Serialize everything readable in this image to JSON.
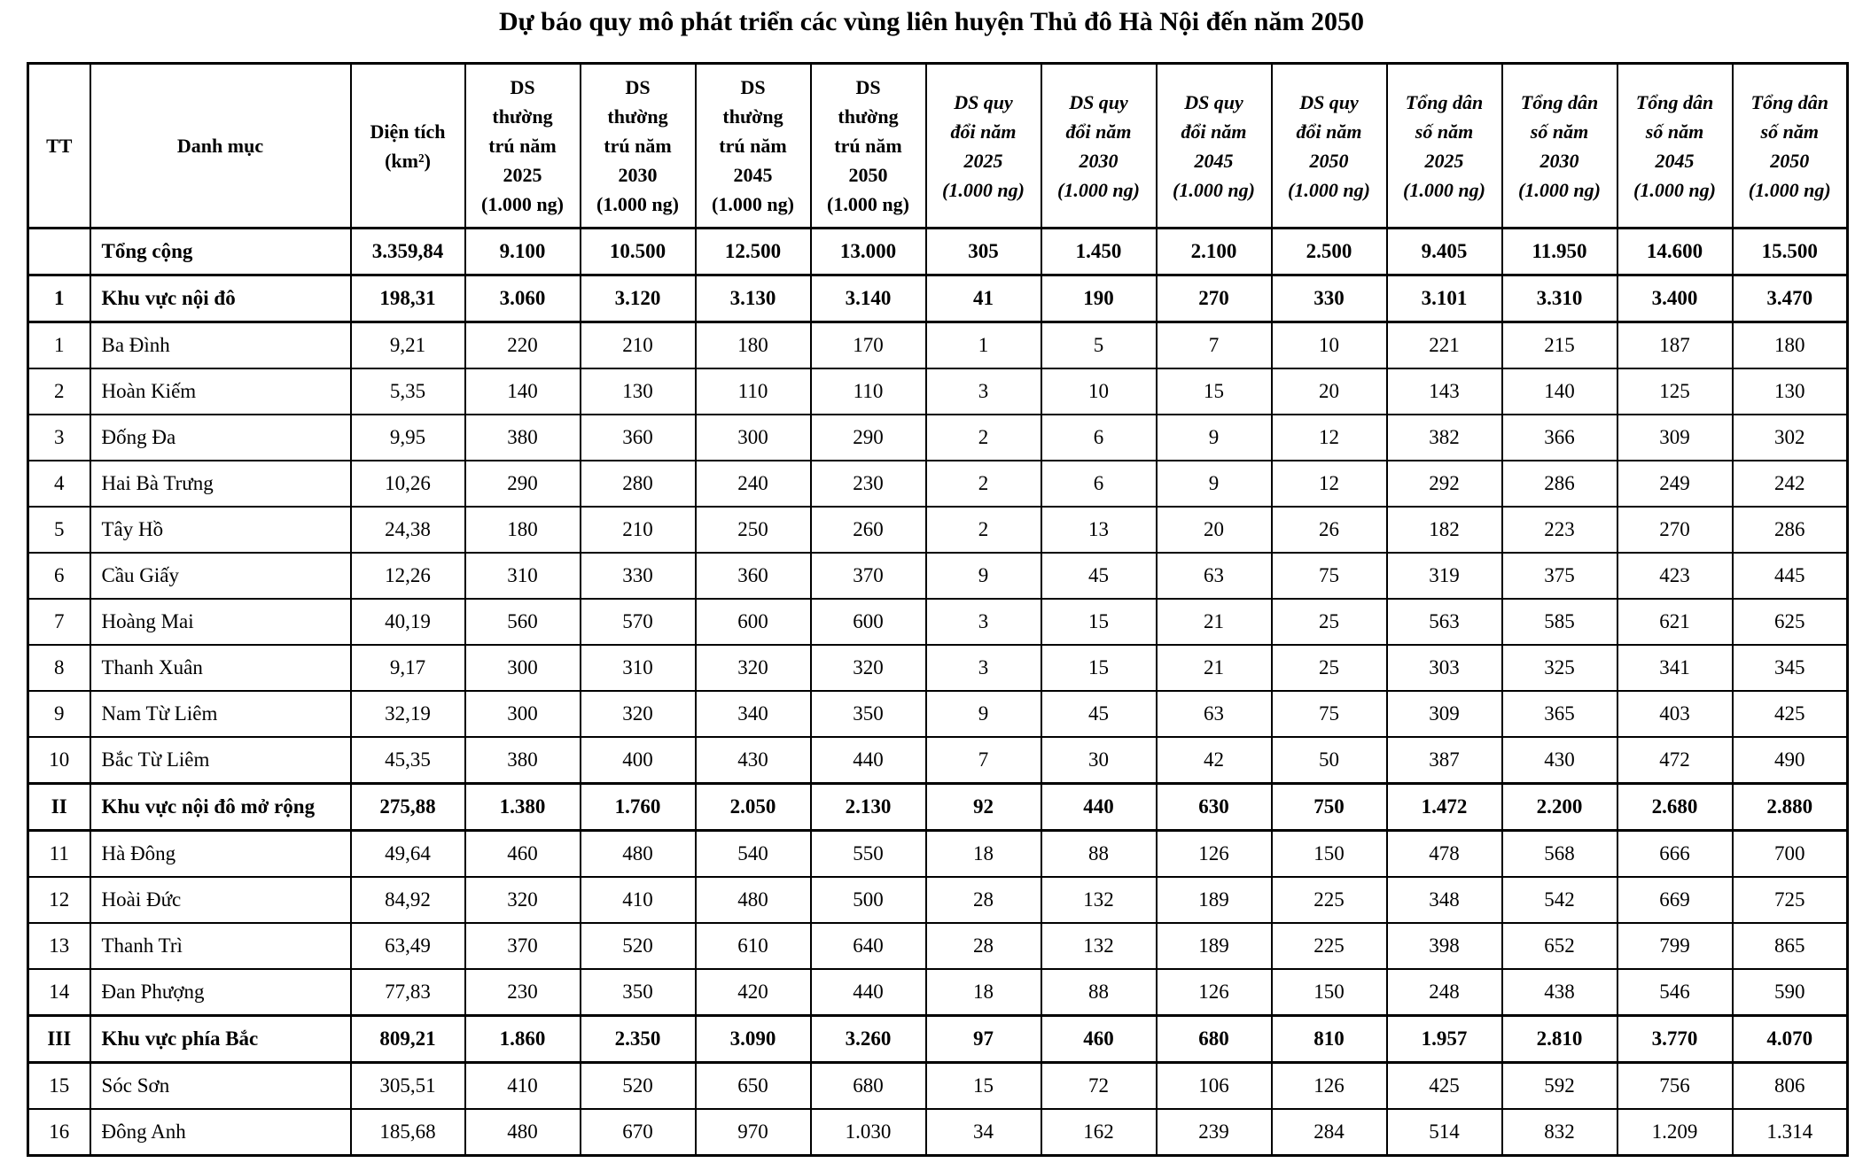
{
  "title": "Dự báo quy mô phát triển các vùng liên huyện Thủ đô Hà Nội đến năm 2050",
  "table": {
    "header": [
      {
        "label": "TT",
        "italic": false
      },
      {
        "label": "Danh mục",
        "italic": false
      },
      {
        "label": "Diện tích\n(km²)",
        "italic": false
      },
      {
        "label": "DS\nthường\ntrú năm\n2025\n(1.000 ng)",
        "italic": false
      },
      {
        "label": "DS\nthường\ntrú năm\n2030\n(1.000 ng)",
        "italic": false
      },
      {
        "label": "DS\nthường\ntrú năm\n2045\n(1.000 ng)",
        "italic": false
      },
      {
        "label": "DS\nthường\ntrú năm\n2050\n(1.000 ng)",
        "italic": false
      },
      {
        "label": "DS quy\nđổi năm\n2025\n(1.000 ng)",
        "italic": true
      },
      {
        "label": "DS quy\nđổi năm\n2030\n(1.000 ng)",
        "italic": true
      },
      {
        "label": "DS quy\nđổi năm\n2045\n(1.000 ng)",
        "italic": true
      },
      {
        "label": "DS quy\nđổi năm\n2050\n(1.000 ng)",
        "italic": true
      },
      {
        "label": "Tổng dân\nsố năm\n2025\n(1.000 ng)",
        "italic": true
      },
      {
        "label": "Tổng dân\nsố năm\n2030\n(1.000 ng)",
        "italic": true
      },
      {
        "label": "Tổng dân\nsố năm\n2045\n(1.000 ng)",
        "italic": true
      },
      {
        "label": "Tổng dân\nsố năm\n2050\n(1.000 ng)",
        "italic": true
      }
    ],
    "rows": [
      {
        "tt": "",
        "name": "Tổng cộng",
        "bold": true,
        "values": [
          "3.359,84",
          "9.100",
          "10.500",
          "12.500",
          "13.000",
          "305",
          "1.450",
          "2.100",
          "2.500",
          "9.405",
          "11.950",
          "14.600",
          "15.500"
        ]
      },
      {
        "tt": "1",
        "name": "Khu vực nội đô",
        "bold": true,
        "values": [
          "198,31",
          "3.060",
          "3.120",
          "3.130",
          "3.140",
          "41",
          "190",
          "270",
          "330",
          "3.101",
          "3.310",
          "3.400",
          "3.470"
        ]
      },
      {
        "tt": "1",
        "name": "Ba Đình",
        "bold": false,
        "values": [
          "9,21",
          "220",
          "210",
          "180",
          "170",
          "1",
          "5",
          "7",
          "10",
          "221",
          "215",
          "187",
          "180"
        ]
      },
      {
        "tt": "2",
        "name": "Hoàn Kiếm",
        "bold": false,
        "values": [
          "5,35",
          "140",
          "130",
          "110",
          "110",
          "3",
          "10",
          "15",
          "20",
          "143",
          "140",
          "125",
          "130"
        ]
      },
      {
        "tt": "3",
        "name": "Đống Đa",
        "bold": false,
        "values": [
          "9,95",
          "380",
          "360",
          "300",
          "290",
          "2",
          "6",
          "9",
          "12",
          "382",
          "366",
          "309",
          "302"
        ]
      },
      {
        "tt": "4",
        "name": "Hai Bà Trưng",
        "bold": false,
        "values": [
          "10,26",
          "290",
          "280",
          "240",
          "230",
          "2",
          "6",
          "9",
          "12",
          "292",
          "286",
          "249",
          "242"
        ]
      },
      {
        "tt": "5",
        "name": "Tây Hồ",
        "bold": false,
        "values": [
          "24,38",
          "180",
          "210",
          "250",
          "260",
          "2",
          "13",
          "20",
          "26",
          "182",
          "223",
          "270",
          "286"
        ]
      },
      {
        "tt": "6",
        "name": "Cầu Giấy",
        "bold": false,
        "values": [
          "12,26",
          "310",
          "330",
          "360",
          "370",
          "9",
          "45",
          "63",
          "75",
          "319",
          "375",
          "423",
          "445"
        ]
      },
      {
        "tt": "7",
        "name": "Hoàng Mai",
        "bold": false,
        "values": [
          "40,19",
          "560",
          "570",
          "600",
          "600",
          "3",
          "15",
          "21",
          "25",
          "563",
          "585",
          "621",
          "625"
        ]
      },
      {
        "tt": "8",
        "name": "Thanh Xuân",
        "bold": false,
        "values": [
          "9,17",
          "300",
          "310",
          "320",
          "320",
          "3",
          "15",
          "21",
          "25",
          "303",
          "325",
          "341",
          "345"
        ]
      },
      {
        "tt": "9",
        "name": "Nam Từ Liêm",
        "bold": false,
        "values": [
          "32,19",
          "300",
          "320",
          "340",
          "350",
          "9",
          "45",
          "63",
          "75",
          "309",
          "365",
          "403",
          "425"
        ]
      },
      {
        "tt": "10",
        "name": "Bắc Từ Liêm",
        "bold": false,
        "values": [
          "45,35",
          "380",
          "400",
          "430",
          "440",
          "7",
          "30",
          "42",
          "50",
          "387",
          "430",
          "472",
          "490"
        ]
      },
      {
        "tt": "II",
        "name": "Khu vực nội đô mở rộng",
        "bold": true,
        "values": [
          "275,88",
          "1.380",
          "1.760",
          "2.050",
          "2.130",
          "92",
          "440",
          "630",
          "750",
          "1.472",
          "2.200",
          "2.680",
          "2.880"
        ]
      },
      {
        "tt": "11",
        "name": "Hà Đông",
        "bold": false,
        "values": [
          "49,64",
          "460",
          "480",
          "540",
          "550",
          "18",
          "88",
          "126",
          "150",
          "478",
          "568",
          "666",
          "700"
        ]
      },
      {
        "tt": "12",
        "name": "Hoài Đức",
        "bold": false,
        "values": [
          "84,92",
          "320",
          "410",
          "480",
          "500",
          "28",
          "132",
          "189",
          "225",
          "348",
          "542",
          "669",
          "725"
        ]
      },
      {
        "tt": "13",
        "name": "Thanh Trì",
        "bold": false,
        "values": [
          "63,49",
          "370",
          "520",
          "610",
          "640",
          "28",
          "132",
          "189",
          "225",
          "398",
          "652",
          "799",
          "865"
        ]
      },
      {
        "tt": "14",
        "name": "Đan Phượng",
        "bold": false,
        "values": [
          "77,83",
          "230",
          "350",
          "420",
          "440",
          "18",
          "88",
          "126",
          "150",
          "248",
          "438",
          "546",
          "590"
        ]
      },
      {
        "tt": "III",
        "name": "Khu vực phía Bắc",
        "bold": true,
        "values": [
          "809,21",
          "1.860",
          "2.350",
          "3.090",
          "3.260",
          "97",
          "460",
          "680",
          "810",
          "1.957",
          "2.810",
          "3.770",
          "4.070"
        ]
      },
      {
        "tt": "15",
        "name": "Sóc Sơn",
        "bold": false,
        "values": [
          "305,51",
          "410",
          "520",
          "650",
          "680",
          "15",
          "72",
          "106",
          "126",
          "425",
          "592",
          "756",
          "806"
        ]
      },
      {
        "tt": "16",
        "name": "Đông Anh",
        "bold": false,
        "values": [
          "185,68",
          "480",
          "670",
          "970",
          "1.030",
          "34",
          "162",
          "239",
          "284",
          "514",
          "832",
          "1.209",
          "1.314"
        ]
      }
    ]
  }
}
